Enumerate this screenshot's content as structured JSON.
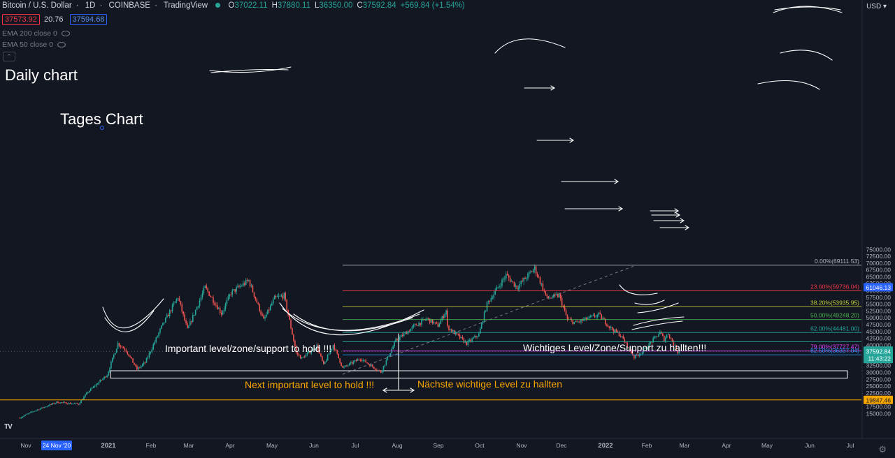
{
  "header": {
    "title": "Bitcoin / U.S. Dollar",
    "interval": "1D",
    "exchange": "COINBASE",
    "platform": "TradingView",
    "open_label": "O",
    "open": "37022.11",
    "high_label": "H",
    "high": "37880.11",
    "low_label": "L",
    "low": "36350.00",
    "close_label": "C",
    "close": "37592.84",
    "change": "+569.84 (+1.54%)",
    "bid": "37573.92",
    "spread": "20.76",
    "ask": "37594.68",
    "currency": "USD"
  },
  "indicators": [
    {
      "label": "EMA 200 close 0"
    },
    {
      "label": "EMA 50 close 0"
    }
  ],
  "chart_data": {
    "type": "candlestick",
    "x_labels": [
      "Nov",
      "24 Nov '20",
      "2021",
      "Feb",
      "Mar",
      "Apr",
      "May",
      "Jun",
      "Jul",
      "Aug",
      "Sep",
      "Oct",
      "Nov",
      "Dec",
      "2022",
      "Feb",
      "Mar",
      "Apr",
      "May",
      "Jun",
      "Jul"
    ],
    "y_ticks": [
      15000,
      17500,
      20000,
      22500,
      25000,
      27500,
      30000,
      32500,
      35000,
      37500,
      40000,
      42500,
      45000,
      47500,
      50000,
      52500,
      55000,
      57500,
      60000,
      62500,
      65000,
      67500,
      70000,
      72500,
      75000
    ],
    "ylim": [
      12500,
      77300
    ],
    "price_path": [
      [
        "2020-10-28",
        13300
      ],
      [
        "2020-11-06",
        15500
      ],
      [
        "2020-11-24",
        19000
      ],
      [
        "2020-12-10",
        18300
      ],
      [
        "2020-12-17",
        22800
      ],
      [
        "2020-12-31",
        29000
      ],
      [
        "2021-01-08",
        40500
      ],
      [
        "2021-01-14",
        38000
      ],
      [
        "2021-01-22",
        31000
      ],
      [
        "2021-01-28",
        33500
      ],
      [
        "2021-02-09",
        46500
      ],
      [
        "2021-02-21",
        57500
      ],
      [
        "2021-02-28",
        45500
      ],
      [
        "2021-03-13",
        61000
      ],
      [
        "2021-03-25",
        51500
      ],
      [
        "2021-04-01",
        59000
      ],
      [
        "2021-04-14",
        63500
      ],
      [
        "2021-04-25",
        49000
      ],
      [
        "2021-05-03",
        57000
      ],
      [
        "2021-05-10",
        58000
      ],
      [
        "2021-05-19",
        37000
      ],
      [
        "2021-05-23",
        35000
      ],
      [
        "2021-06-03",
        39500
      ],
      [
        "2021-06-08",
        32500
      ],
      [
        "2021-06-15",
        40000
      ],
      [
        "2021-06-22",
        31500
      ],
      [
        "2021-07-05",
        35000
      ],
      [
        "2021-07-20",
        30000
      ],
      [
        "2021-07-31",
        41500
      ],
      [
        "2021-08-14",
        47000
      ],
      [
        "2021-08-23",
        49500
      ],
      [
        "2021-08-31",
        47000
      ],
      [
        "2021-09-06",
        52500
      ],
      [
        "2021-09-07",
        46500
      ],
      [
        "2021-09-21",
        40500
      ],
      [
        "2021-09-30",
        43800
      ],
      [
        "2021-10-06",
        55000
      ],
      [
        "2021-10-20",
        65500
      ],
      [
        "2021-10-28",
        61000
      ],
      [
        "2021-11-10",
        68000
      ],
      [
        "2021-11-19",
        57000
      ],
      [
        "2021-11-28",
        58000
      ],
      [
        "2021-12-04",
        49200
      ],
      [
        "2021-12-10",
        48000
      ],
      [
        "2021-12-27",
        51000
      ],
      [
        "2022-01-05",
        46000
      ],
      [
        "2022-01-12",
        43500
      ],
      [
        "2022-01-22",
        35500
      ],
      [
        "2022-01-28",
        37500
      ],
      [
        "2022-02-10",
        44500
      ],
      [
        "2022-02-13",
        42000
      ],
      [
        "2022-02-16",
        44200
      ],
      [
        "2022-02-23",
        37300
      ],
      [
        "2022-02-24",
        37592.84
      ]
    ],
    "fib_levels": [
      {
        "label": "0.00%(69111.53)",
        "value": 69111.53,
        "color": "#b2b5be"
      },
      {
        "label": "23.60%(59736.04)",
        "value": 59736.04,
        "color": "#f23645"
      },
      {
        "label": "38.20%(53935.95)",
        "value": 53935.95,
        "color": "#c0ca33"
      },
      {
        "label": "50.00%(49248.20)",
        "value": 49248.2,
        "color": "#4caf50"
      },
      {
        "label": "62.00%(44481.00)",
        "value": 44481.0,
        "color": "#26a69a"
      },
      {
        "label": "",
        "value": 41100,
        "color": "#26a69a"
      },
      {
        "label": "79.00%(37727.47)",
        "value": 37727.47,
        "color": "#e040fb"
      },
      {
        "label": "82.50%(36337.04)",
        "value": 36337.04,
        "color": "#2196f3"
      }
    ],
    "horizontal_level": {
      "value": 19847.46,
      "label": "19847.46",
      "color": "#f7a600"
    },
    "last_price": {
      "value": "37592.84",
      "countdown": "11:43:22",
      "color": "#26a69a"
    },
    "price_label_61046": {
      "value": "61046.13",
      "color": "#2962ff"
    },
    "support_zone": {
      "low": 27800,
      "high": 30500
    },
    "annotations": [
      {
        "text": "Daily chart",
        "color": "#ffffff"
      },
      {
        "text": "Tages Chart",
        "color": "#ffffff"
      },
      {
        "text": "Important level/zone/support to hold !!!",
        "color": "#ffffff"
      },
      {
        "text": "Wichtiges Level/Zone/Support zu hallten!!!",
        "color": "#ffffff"
      },
      {
        "text": "Next important level to hold !!!",
        "color": "#f7a600"
      },
      {
        "text": "Nächste wichtige Level zu hallten",
        "color": "#f7a600"
      }
    ],
    "colors": {
      "up": "#26a69a",
      "down": "#ef5350",
      "background": "#131722",
      "axis_text": "#b2b5be"
    }
  }
}
